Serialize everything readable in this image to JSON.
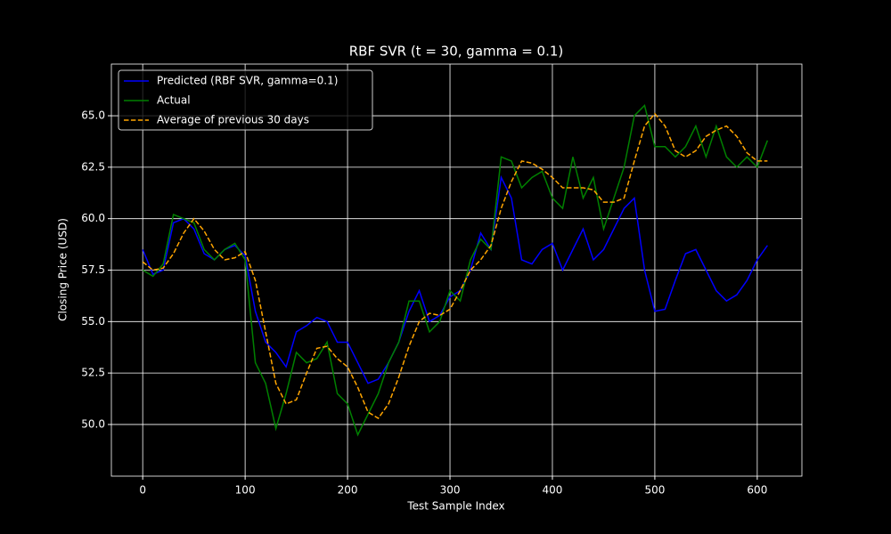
{
  "chart_data": {
    "type": "line",
    "title": "RBF SVR (t = 30, gamma = 0.1)",
    "x_label": "Test Sample Index",
    "y_label": "Closing Price (USD)",
    "x": [
      0,
      10,
      20,
      30,
      40,
      50,
      60,
      70,
      80,
      90,
      100,
      110,
      120,
      130,
      140,
      150,
      160,
      170,
      180,
      190,
      200,
      210,
      220,
      230,
      240,
      250,
      260,
      270,
      280,
      290,
      300,
      310,
      320,
      330,
      340,
      350,
      360,
      370,
      380,
      390,
      400,
      410,
      420,
      430,
      440,
      450,
      460,
      470,
      480,
      490,
      500,
      510,
      520,
      530,
      540,
      550,
      560,
      570,
      580,
      590,
      600,
      610
    ],
    "series": [
      {
        "name": "Predicted (RBF SVR, gamma=0.1)",
        "color": "#0000ff",
        "dashed": false,
        "values": [
          58.5,
          57.3,
          57.5,
          59.8,
          60.0,
          59.5,
          58.3,
          58.0,
          58.5,
          58.7,
          58.2,
          55.5,
          54.0,
          53.5,
          52.8,
          54.5,
          54.8,
          55.2,
          55.0,
          54.0,
          54.0,
          53.0,
          52.0,
          52.2,
          53.0,
          54.0,
          55.5,
          56.5,
          55.0,
          55.3,
          56.2,
          56.5,
          57.5,
          59.3,
          58.5,
          62.0,
          61.0,
          58.0,
          57.8,
          58.5,
          58.8,
          57.5,
          58.5,
          59.5,
          58.0,
          58.5,
          59.5,
          60.5,
          61.0,
          57.5,
          55.5,
          55.6,
          57.0,
          58.3,
          58.5,
          57.5,
          56.5,
          56.0,
          56.3,
          57.0,
          58.0,
          58.7
        ]
      },
      {
        "name": "Actual",
        "color": "#008000",
        "dashed": false,
        "values": [
          57.5,
          57.2,
          57.8,
          60.2,
          60.0,
          59.8,
          58.5,
          58.0,
          58.5,
          58.8,
          58.0,
          53.0,
          52.0,
          49.8,
          51.5,
          53.5,
          53.0,
          53.2,
          54.0,
          51.5,
          51.0,
          49.5,
          50.5,
          51.5,
          53.0,
          54.0,
          56.0,
          56.0,
          54.5,
          55.0,
          56.5,
          56.0,
          58.0,
          59.0,
          58.5,
          63.0,
          62.8,
          61.5,
          62.0,
          62.3,
          61.0,
          60.5,
          63.0,
          61.0,
          62.0,
          59.5,
          61.0,
          62.5,
          65.0,
          65.5,
          63.5,
          63.5,
          63.0,
          63.5,
          64.5,
          63.0,
          64.5,
          63.0,
          62.5,
          63.0,
          62.5,
          63.8
        ]
      },
      {
        "name": "Average of previous 30 days",
        "color": "#ffa500",
        "dashed": true,
        "values": [
          57.9,
          57.5,
          57.6,
          58.3,
          59.3,
          60.0,
          59.4,
          58.5,
          58.0,
          58.1,
          58.4,
          57.0,
          54.5,
          52.0,
          51.0,
          51.2,
          52.5,
          53.7,
          53.8,
          53.2,
          52.8,
          51.8,
          50.6,
          50.3,
          51.0,
          52.3,
          53.8,
          55.0,
          55.4,
          55.3,
          55.6,
          56.5,
          57.5,
          58.0,
          58.7,
          60.5,
          61.8,
          62.8,
          62.7,
          62.4,
          62.0,
          61.5,
          61.5,
          61.5,
          61.4,
          60.8,
          60.8,
          61.0,
          62.8,
          64.5,
          65.1,
          64.5,
          63.3,
          63.0,
          63.3,
          64.0,
          64.3,
          64.5,
          64.0,
          63.2,
          62.8,
          62.8
        ]
      }
    ],
    "xlim": [
      -30.6,
      643.6
    ],
    "ylim": [
      47.49,
      67.51
    ],
    "xticks": [
      0,
      100,
      200,
      300,
      400,
      500,
      600
    ],
    "yticks": [
      {
        "value": 50,
        "label": "50.0"
      },
      52.5,
      {
        "value": 55,
        "label": "55.0"
      },
      57.5,
      {
        "value": 60,
        "label": "60.0"
      },
      62.5,
      {
        "value": 65,
        "label": "65.0"
      }
    ],
    "grid": true,
    "legend": "upper-left"
  }
}
